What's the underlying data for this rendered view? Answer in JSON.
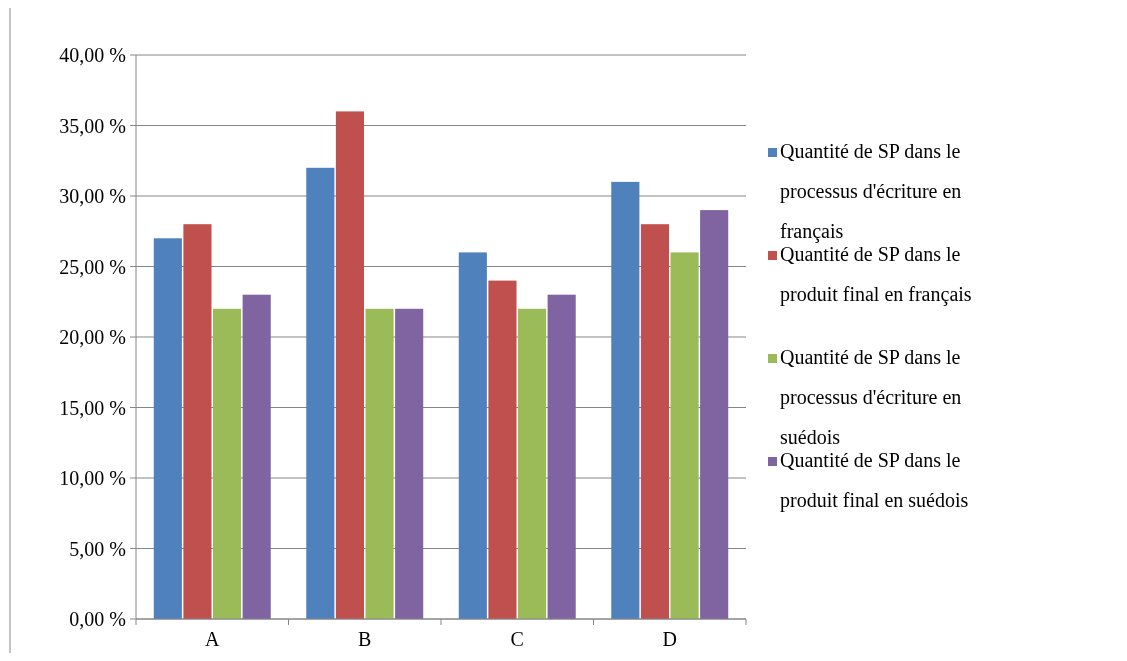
{
  "chart_data": {
    "type": "bar",
    "categories": [
      "A",
      "B",
      "C",
      "D"
    ],
    "series": [
      {
        "name": "Quantité de SP dans le processus d'écriture en français",
        "color": "#4f81bd",
        "values": [
          27,
          32,
          26,
          31
        ]
      },
      {
        "name": "Quantité de SP dans le produit final en français",
        "color": "#c0504d",
        "values": [
          28,
          36,
          24,
          28
        ]
      },
      {
        "name": "Quantité de SP dans le processus d'écriture en suédois",
        "color": "#9bbb59",
        "values": [
          22,
          22,
          22,
          26
        ]
      },
      {
        "name": "Quantité de SP dans le produit final en suédois",
        "color": "#8064a2",
        "values": [
          23,
          22,
          23,
          29
        ]
      }
    ],
    "ylim": [
      0,
      40
    ],
    "yticks": [
      {
        "value": 0,
        "label": "0,00 %"
      },
      {
        "value": 5,
        "label": "5,00 %"
      },
      {
        "value": 10,
        "label": "10,00 %"
      },
      {
        "value": 15,
        "label": "15,00 %"
      },
      {
        "value": 20,
        "label": "20,00 %"
      },
      {
        "value": 25,
        "label": "25,00 %"
      },
      {
        "value": 30,
        "label": "30,00 %"
      },
      {
        "value": 35,
        "label": "35,00 %"
      },
      {
        "value": 40,
        "label": "40,00 %"
      }
    ],
    "grid": "y",
    "legend": "right"
  }
}
